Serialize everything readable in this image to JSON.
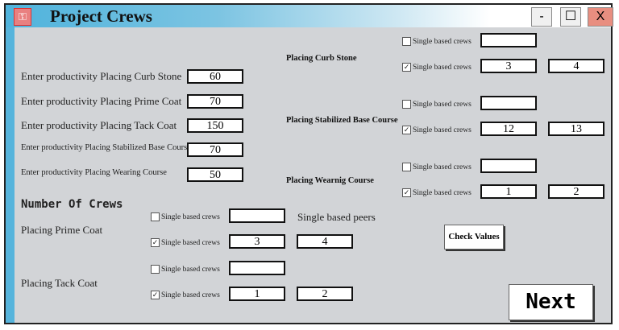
{
  "window": {
    "title": "Project Crews",
    "minimize": "-",
    "maximize": "☐",
    "close": "X",
    "icon": "key-icon"
  },
  "productivity": [
    {
      "label": "Enter productivity Placing Curb Stone",
      "value": "60"
    },
    {
      "label": "Enter productivity Placing Prime Coat",
      "value": "70"
    },
    {
      "label": "Enter productivity Placing Tack Coat",
      "value": "150"
    },
    {
      "label": "Enter productivity Placing Stabilized Base Course",
      "value": "70"
    },
    {
      "label": "Enter productivity Placing Wearing Course",
      "value": "50"
    }
  ],
  "crews_heading": "Number Of Crews",
  "peers_label": "Single based peers",
  "check_label": "Single based crews",
  "left_groups": [
    {
      "title": "Placing Prime Coat",
      "row1": {
        "checked": false,
        "value": ""
      },
      "row2": {
        "checked": true,
        "value": "3",
        "peers": "4"
      }
    },
    {
      "title": "Placing Tack Coat",
      "row1": {
        "checked": false,
        "value": ""
      },
      "row2": {
        "checked": true,
        "value": "1",
        "peers": "2"
      }
    }
  ],
  "right_groups": [
    {
      "title": "Placing Curb Stone",
      "row1": {
        "checked": false,
        "value": ""
      },
      "row2": {
        "checked": true,
        "value": "3",
        "peers": "4"
      }
    },
    {
      "title": "Placing Stabilized Base Course",
      "row1": {
        "checked": false,
        "value": ""
      },
      "row2": {
        "checked": true,
        "value": "12",
        "peers": "13"
      }
    },
    {
      "title": "Placing Wearnig Course",
      "row1": {
        "checked": false,
        "value": ""
      },
      "row2": {
        "checked": true,
        "value": "1",
        "peers": "2"
      }
    }
  ],
  "buttons": {
    "check": "Check Values",
    "next": "Next"
  }
}
